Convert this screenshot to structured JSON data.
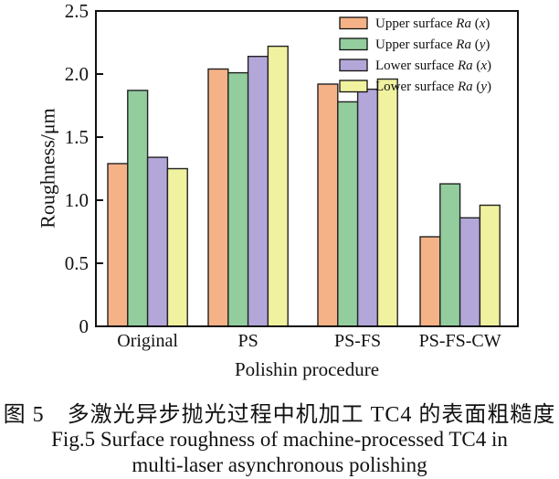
{
  "figure": {
    "caption_chinese": "图 5　多激光异步抛光过程中机加工 TC4 的表面粗糙度",
    "caption_english_line1": "Fig.5 Surface roughness of machine-processed TC4 in",
    "caption_english_line2": "multi-laser asynchronous polishing"
  },
  "chart_data": {
    "type": "bar",
    "title": "",
    "xlabel": "Polishin procedure",
    "ylabel": "Roughness/μm",
    "ylim": [
      0,
      2.5
    ],
    "ytick_step": 0.5,
    "ytick_labels": [
      "0",
      "0.5",
      "1.0",
      "1.5",
      "2.0",
      "2.5"
    ],
    "grid": false,
    "legend_position": "top-right-inside",
    "categories": [
      "Original",
      "PS",
      "PS-FS",
      "PS-FS-CW"
    ],
    "series": [
      {
        "name": "Upper surface Ra (x)",
        "label_prefix": "Upper surface",
        "label_symbol": "Ra",
        "label_axis": "x",
        "color": "#f6b287",
        "values": [
          1.29,
          2.04,
          1.92,
          0.71
        ]
      },
      {
        "name": "Upper surface Ra (y)",
        "label_prefix": "Upper surface",
        "label_symbol": "Ra",
        "label_axis": "y",
        "color": "#93cd9e",
        "values": [
          1.87,
          2.01,
          1.78,
          1.13
        ]
      },
      {
        "name": "Lower surface Ra (x)",
        "label_prefix": "Lower surface",
        "label_symbol": "Ra",
        "label_axis": "x",
        "color": "#b3a7d9",
        "values": [
          1.34,
          2.14,
          1.88,
          0.86
        ]
      },
      {
        "name": "Lower surface Ra (y)",
        "label_prefix": "Lower surface",
        "label_symbol": "Ra",
        "label_axis": "y",
        "color": "#f1f2a0",
        "values": [
          1.25,
          2.22,
          1.96,
          0.96
        ]
      }
    ],
    "bar_outline": "#222222",
    "axis_color": "#111111"
  }
}
